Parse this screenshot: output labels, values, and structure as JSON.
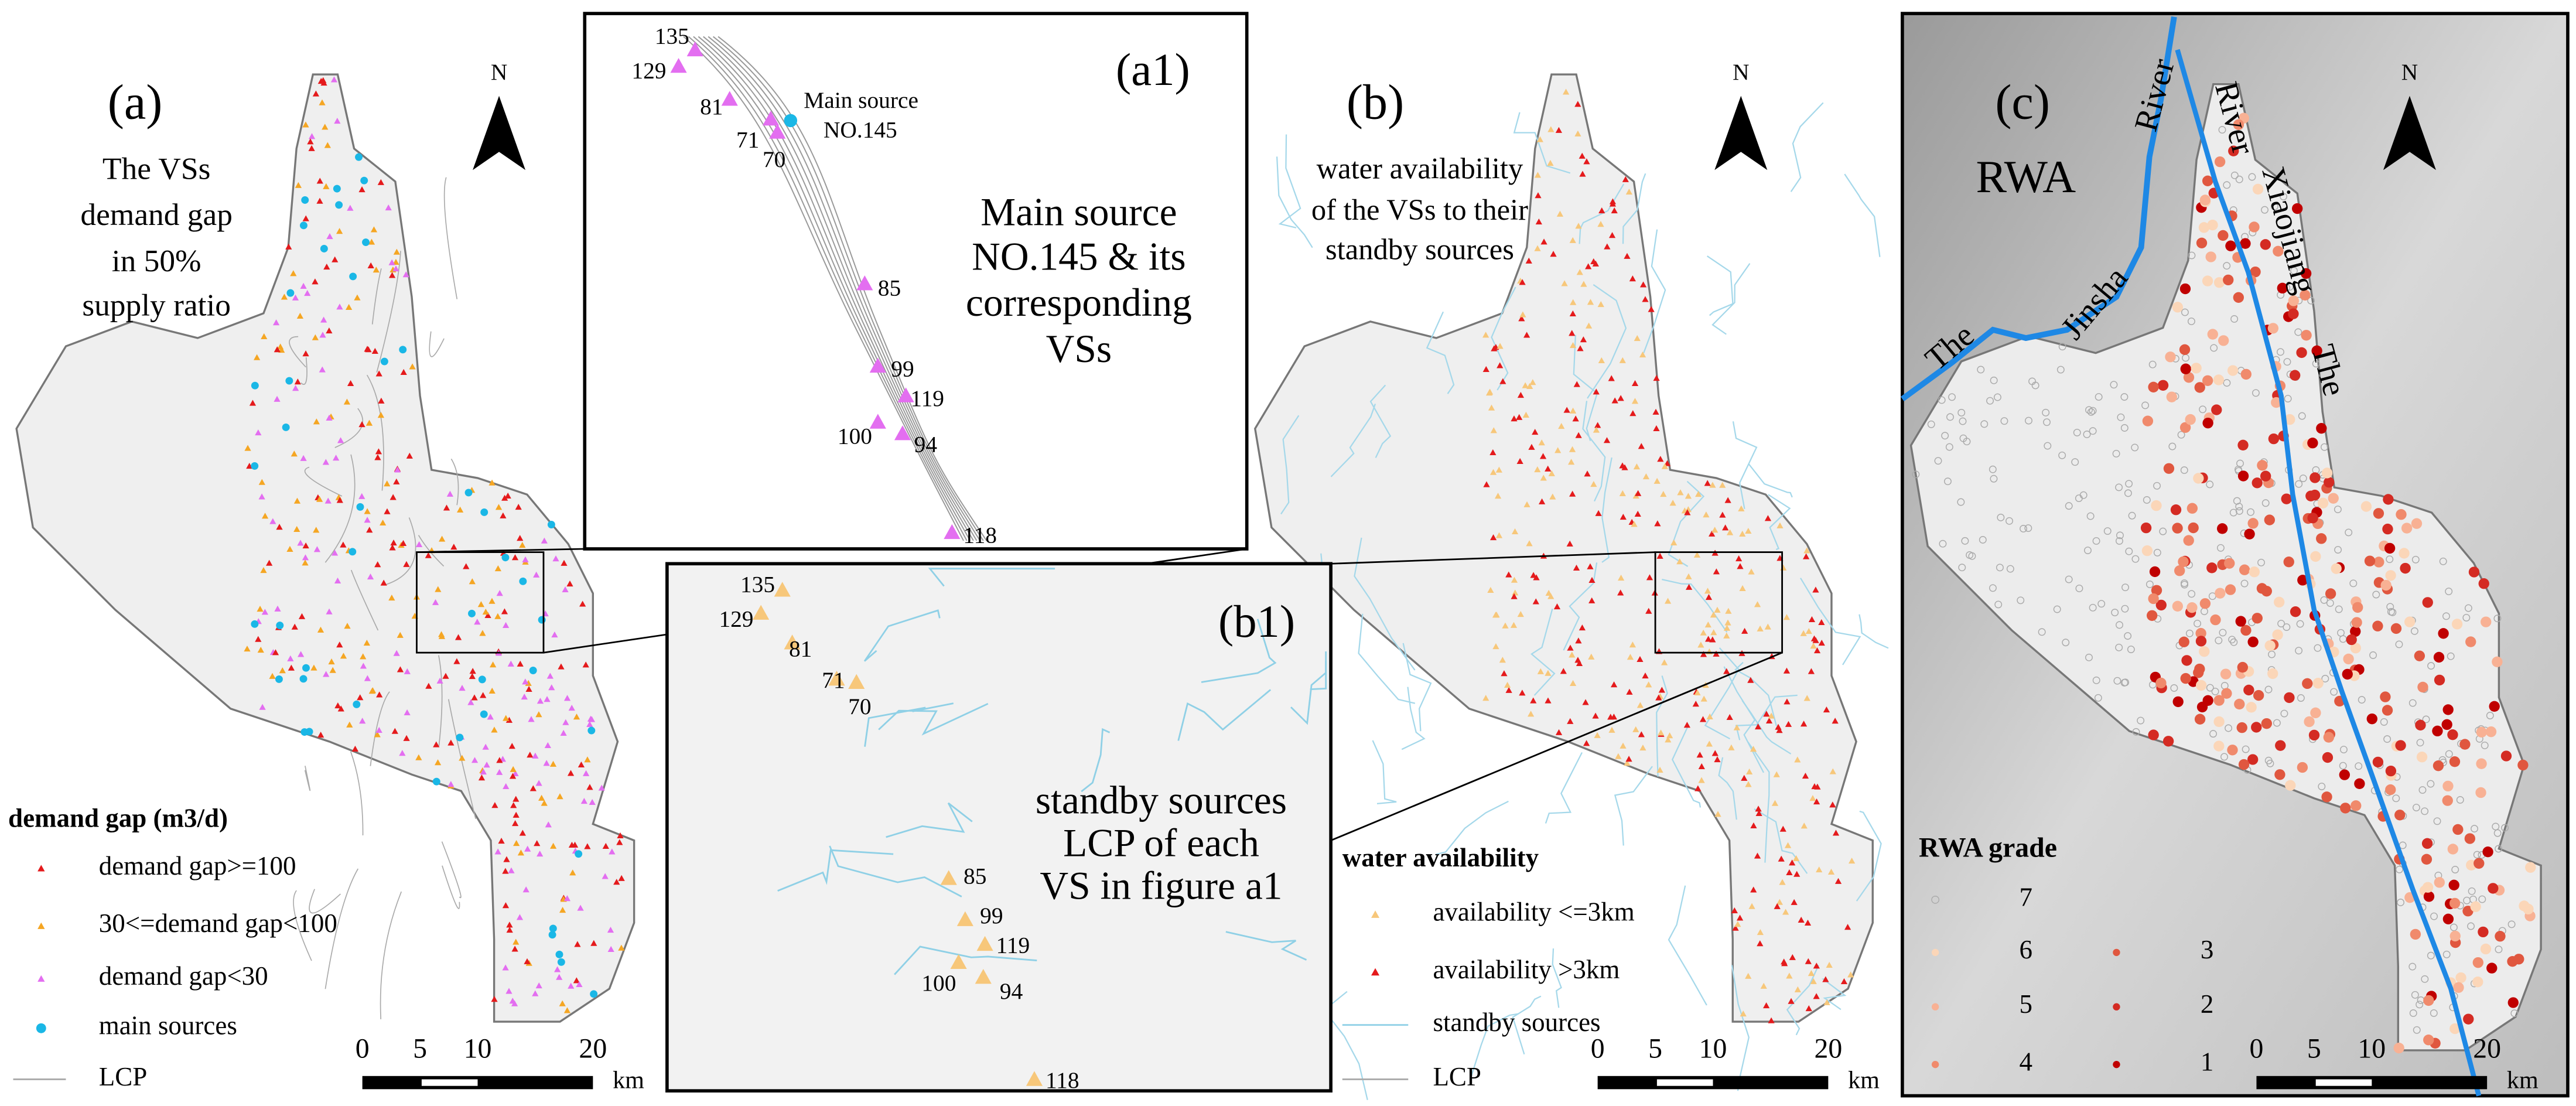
{
  "panels": {
    "a": {
      "label": "(a)",
      "title_lines": [
        "The VSs",
        "demand gap",
        "in 50%",
        "supply ratio"
      ],
      "north": "N",
      "legend": {
        "title": "demand gap (m3/d)",
        "items": [
          "demand gap>=100",
          "30<=demand gap<100",
          "demand gap<30",
          "main sources",
          "LCP"
        ]
      },
      "scale": {
        "ticks": [
          0,
          5,
          10,
          20
        ],
        "unit": "km"
      }
    },
    "a1": {
      "label": "(a1)",
      "text_lines": [
        "Main source",
        "NO.145 & its",
        "corresponding",
        "VSs"
      ],
      "callout": [
        "Main source",
        "NO.145"
      ],
      "points": [
        "135",
        "129",
        "81",
        "71",
        "70",
        "85",
        "99",
        "119",
        "100",
        "94",
        "118"
      ]
    },
    "b": {
      "label": "(b)",
      "title_lines": [
        "water availability",
        "of the VSs to their",
        "standby sources"
      ],
      "north": "N",
      "legend": {
        "title": "water availability",
        "items": [
          "availability <=3km",
          "availability >3km",
          "standby sources",
          "LCP"
        ]
      },
      "scale": {
        "ticks": [
          0,
          5,
          10,
          20
        ],
        "unit": "km"
      }
    },
    "b1": {
      "label": "(b1)",
      "text_lines": [
        "standby sources",
        "LCP of each",
        "VS in figure a1"
      ],
      "points": [
        "135",
        "129",
        "81",
        "71",
        "70",
        "85",
        "99",
        "119",
        "100",
        "94",
        "118"
      ]
    },
    "c": {
      "label": "(c)",
      "title": "RWA",
      "north": "N",
      "river_labels": [
        "The",
        "Jinsha",
        "River",
        "River",
        "Xiaojiang",
        "The"
      ],
      "legend": {
        "title": "RWA grade",
        "items": [
          "7",
          "6",
          "5",
          "4",
          "3",
          "2",
          "1"
        ]
      },
      "scale": {
        "ticks": [
          0,
          5,
          10,
          20
        ],
        "unit": "km"
      }
    }
  }
}
